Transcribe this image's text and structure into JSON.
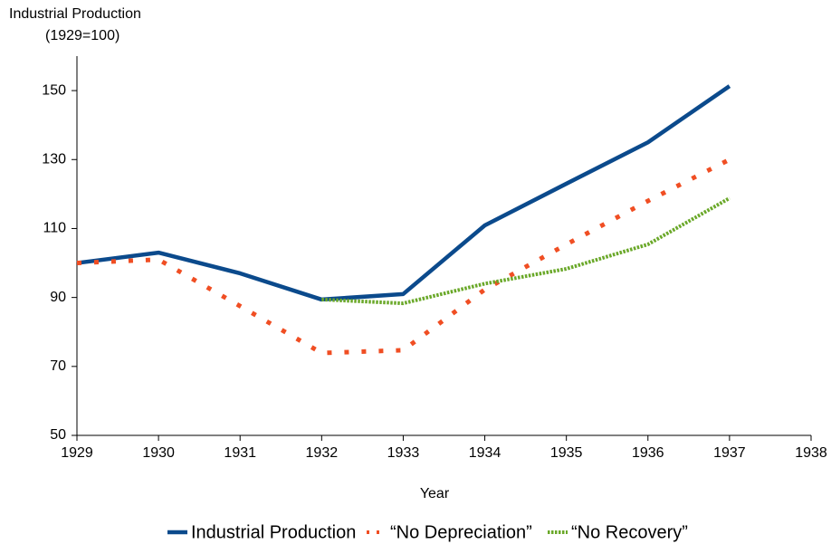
{
  "chart_data": {
    "type": "line",
    "title": "Industrial Production",
    "subtitle": "(1929=100)",
    "x_label": "Year",
    "x": [
      1929,
      1930,
      1931,
      1932,
      1933,
      1934,
      1935,
      1936,
      1937
    ],
    "series": [
      {
        "name": "Industrial Production",
        "color": "#0b4a8c",
        "style": "solid",
        "values": [
          100,
          103,
          97,
          89.4,
          91,
          110.9,
          123,
          135,
          151.3
        ]
      },
      {
        "name": "“No Depreciation”",
        "color": "#f04e23",
        "style": "dotted",
        "values": [
          100,
          101,
          87.5,
          73.9,
          74.7,
          92.3,
          105.4,
          118,
          130
        ]
      },
      {
        "name": "“No Recovery”",
        "color": "#6aa829",
        "style": "dashed",
        "values": [
          null,
          null,
          null,
          89.4,
          88.3,
          94,
          98.3,
          105.4,
          118.8
        ]
      }
    ],
    "xlim": [
      1929,
      1938
    ],
    "xticks": [
      1929,
      1930,
      1931,
      1932,
      1933,
      1934,
      1935,
      1936,
      1937,
      1938
    ],
    "ylim": [
      50,
      160
    ],
    "yticks": [
      50,
      70,
      90,
      110,
      130,
      150
    ],
    "grid": false,
    "legend": "bottom"
  }
}
